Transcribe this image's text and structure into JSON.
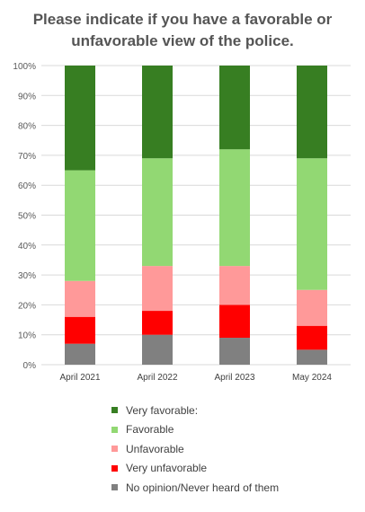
{
  "chart_data": {
    "type": "bar",
    "stacked": true,
    "title": "Please indicate if you have a favorable or unfavorable view of the police.",
    "categories": [
      "April 2021",
      "April 2022",
      "April 2023",
      "May 2024"
    ],
    "ylim": [
      0,
      100
    ],
    "ytick_values": [
      0,
      10,
      20,
      30,
      40,
      50,
      60,
      70,
      80,
      90,
      100
    ],
    "ytick_labels": [
      "0%",
      "10%",
      "20%",
      "30%",
      "40%",
      "50%",
      "60%",
      "70%",
      "80%",
      "90%",
      "100%"
    ],
    "grid": true,
    "legend_position": "bottom",
    "series": [
      {
        "name": "No opinion/Never heard of them",
        "color": "#808080",
        "values": [
          7,
          10,
          9,
          5
        ]
      },
      {
        "name": "Very unfavorable",
        "color": "#ff0000",
        "values": [
          9,
          8,
          11,
          8
        ]
      },
      {
        "name": "Unfavorable",
        "color": "#ff9999",
        "values": [
          12,
          15,
          13,
          12
        ]
      },
      {
        "name": "Favorable",
        "color": "#92d873",
        "values": [
          37,
          36,
          39,
          44
        ]
      },
      {
        "name": "Very favorable:",
        "color": "#377e22",
        "values": [
          35,
          31,
          28,
          31
        ]
      }
    ]
  }
}
